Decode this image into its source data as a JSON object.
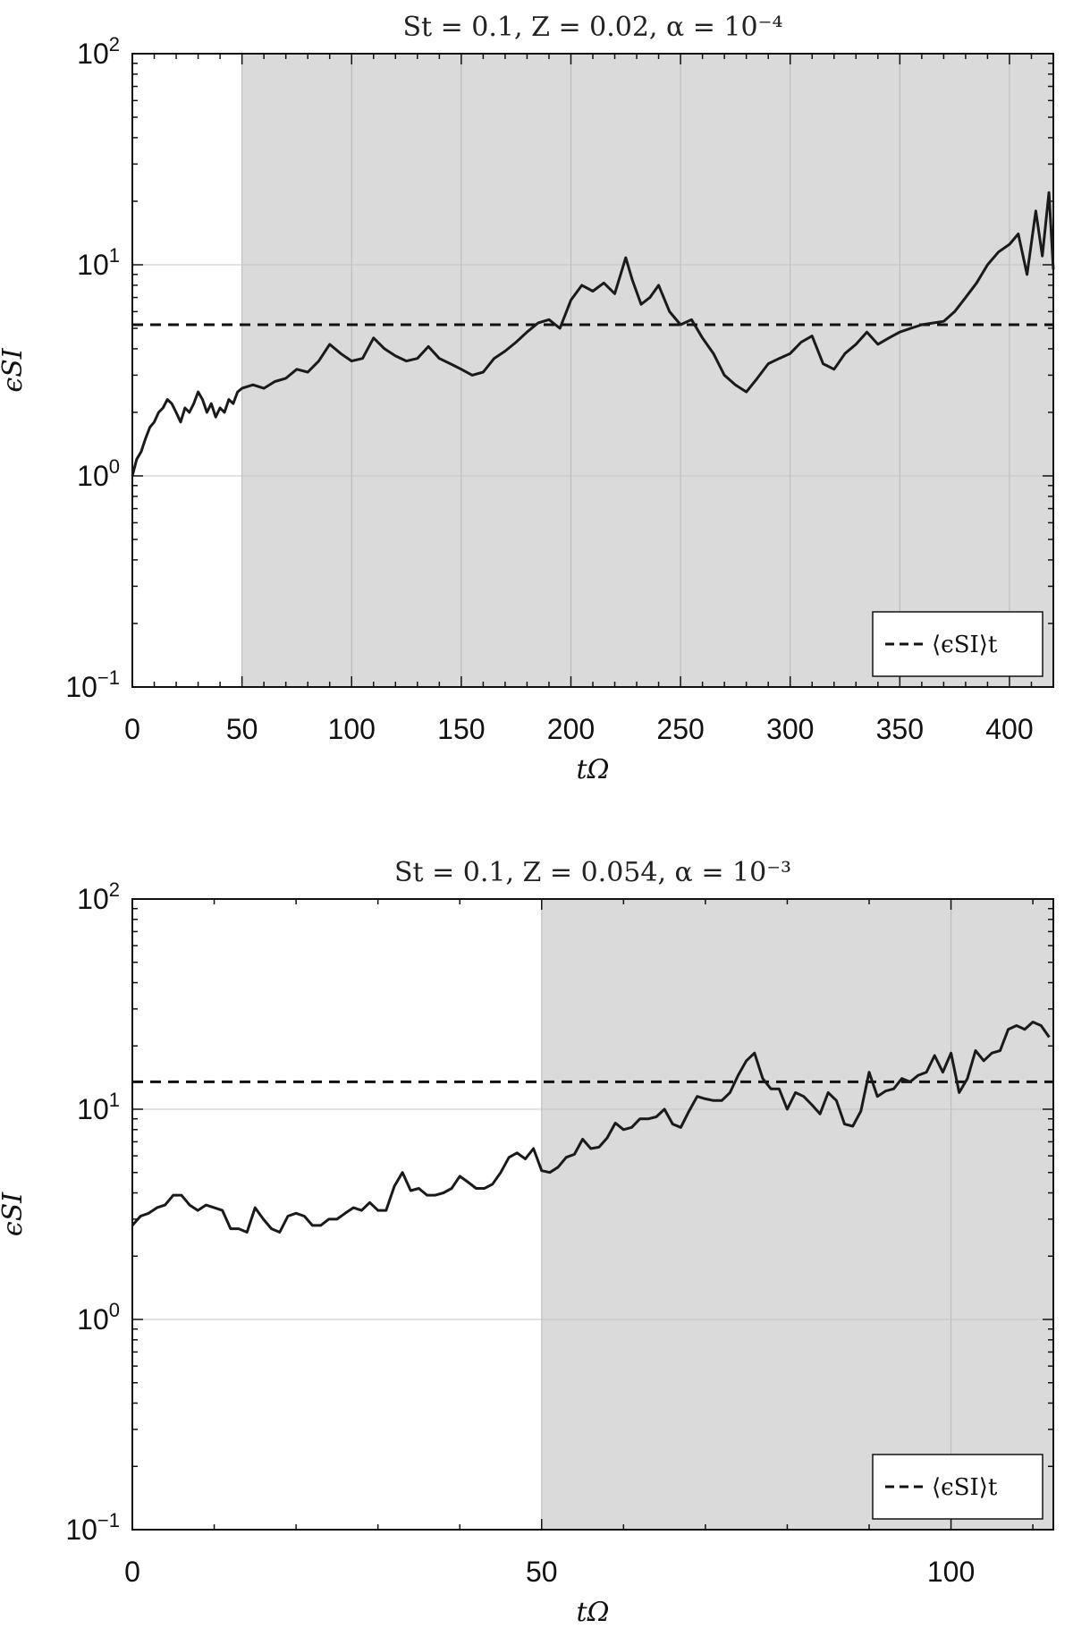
{
  "chart_data": [
    {
      "type": "line",
      "title": "St = 0.1,   Z = 0.02, α = 10⁻⁴",
      "xlabel": "tΩ",
      "ylabel": "ϵSI",
      "yscale": "log",
      "xlim": [
        0,
        420
      ],
      "ylim": [
        0.1,
        100
      ],
      "xticks": [
        0,
        50,
        100,
        150,
        200,
        250,
        300,
        350,
        400
      ],
      "yticks": [
        {
          "value": 0.1,
          "base": "10",
          "exp": "−1"
        },
        {
          "value": 1,
          "base": "10",
          "exp": "0"
        },
        {
          "value": 10,
          "base": "10",
          "exp": "1"
        },
        {
          "value": 100,
          "base": "10",
          "exp": "2"
        }
      ],
      "grid": true,
      "shaded_region": {
        "x_start": 50,
        "x_end": 420
      },
      "mean_line": {
        "label": "⟨ϵSI⟩t",
        "value": 5.2
      },
      "legend": {
        "position": "bottom-right",
        "entries": [
          "⟨ϵSI⟩t"
        ]
      },
      "series": [
        {
          "x": [
            0,
            2,
            4,
            6,
            8,
            10,
            12,
            14,
            16,
            18,
            20,
            22,
            24,
            26,
            28,
            30,
            32,
            34,
            36,
            38,
            40,
            42,
            44,
            46,
            48,
            50,
            55,
            60,
            65,
            70,
            75,
            80,
            85,
            90,
            95,
            100,
            105,
            110,
            115,
            120,
            125,
            130,
            135,
            140,
            145,
            150,
            155,
            160,
            165,
            170,
            175,
            180,
            185,
            190,
            195,
            200,
            205,
            210,
            215,
            220,
            225,
            228,
            232,
            236,
            240,
            245,
            250,
            255,
            260,
            265,
            270,
            275,
            280,
            285,
            290,
            295,
            300,
            305,
            310,
            315,
            320,
            325,
            330,
            335,
            340,
            345,
            350,
            355,
            360,
            365,
            370,
            375,
            380,
            385,
            390,
            395,
            400,
            404,
            408,
            412,
            415,
            418,
            420
          ],
          "y": [
            1.0,
            1.2,
            1.3,
            1.5,
            1.7,
            1.8,
            2.0,
            2.1,
            2.3,
            2.2,
            2.0,
            1.8,
            2.1,
            2.0,
            2.2,
            2.5,
            2.3,
            2.0,
            2.2,
            1.9,
            2.1,
            2.0,
            2.3,
            2.2,
            2.5,
            2.6,
            2.7,
            2.6,
            2.8,
            2.9,
            3.2,
            3.1,
            3.5,
            4.2,
            3.8,
            3.5,
            3.6,
            4.5,
            4.0,
            3.7,
            3.5,
            3.6,
            4.1,
            3.6,
            3.4,
            3.2,
            3.0,
            3.1,
            3.6,
            3.9,
            4.3,
            4.8,
            5.3,
            5.5,
            5.0,
            6.8,
            8.0,
            7.5,
            8.2,
            7.3,
            10.8,
            8.5,
            6.5,
            7.0,
            8.0,
            6.0,
            5.2,
            5.5,
            4.5,
            3.8,
            3.0,
            2.7,
            2.5,
            2.9,
            3.4,
            3.6,
            3.8,
            4.3,
            4.6,
            3.4,
            3.2,
            3.8,
            4.2,
            4.8,
            4.2,
            4.5,
            4.8,
            5.0,
            5.2,
            5.3,
            5.4,
            6.0,
            7.0,
            8.2,
            10.0,
            11.5,
            12.5,
            14.0,
            9.0,
            18.0,
            11.0,
            22.0,
            9.5
          ]
        }
      ]
    },
    {
      "type": "line",
      "title": "St = 0.1,   Z = 0.054, α = 10⁻³",
      "xlabel": "tΩ",
      "ylabel": "ϵSI",
      "yscale": "log",
      "xlim": [
        0,
        112.5
      ],
      "ylim": [
        0.1,
        100
      ],
      "xticks": [
        0,
        50,
        100
      ],
      "yticks": [
        {
          "value": 0.1,
          "base": "10",
          "exp": "−1"
        },
        {
          "value": 1,
          "base": "10",
          "exp": "0"
        },
        {
          "value": 10,
          "base": "10",
          "exp": "1"
        },
        {
          "value": 100,
          "base": "10",
          "exp": "2"
        }
      ],
      "grid": true,
      "shaded_region": {
        "x_start": 50,
        "x_end": 112.5
      },
      "mean_line": {
        "label": "⟨ϵSI⟩t",
        "value": 13.5
      },
      "legend": {
        "position": "bottom-right",
        "entries": [
          "⟨ϵSI⟩t"
        ]
      },
      "series": [
        {
          "x": [
            0,
            1,
            2,
            3,
            4,
            5,
            6,
            7,
            8,
            9,
            10,
            11,
            12,
            13,
            14,
            15,
            16,
            17,
            18,
            19,
            20,
            21,
            22,
            23,
            24,
            25,
            26,
            27,
            28,
            29,
            30,
            31,
            32,
            33,
            34,
            35,
            36,
            37,
            38,
            39,
            40,
            41,
            42,
            43,
            44,
            45,
            46,
            47,
            48,
            49,
            50,
            51,
            52,
            53,
            54,
            55,
            56,
            57,
            58,
            59,
            60,
            61,
            62,
            63,
            64,
            65,
            66,
            67,
            68,
            69,
            70,
            71,
            72,
            73,
            74,
            75,
            76,
            77,
            78,
            79,
            80,
            81,
            82,
            83,
            84,
            85,
            86,
            87,
            88,
            89,
            90,
            91,
            92,
            93,
            94,
            95,
            96,
            97,
            98,
            99,
            100,
            101,
            102,
            103,
            104,
            105,
            106,
            107,
            108,
            109,
            110,
            111,
            112
          ],
          "y": [
            2.8,
            3.1,
            3.2,
            3.4,
            3.5,
            3.9,
            3.9,
            3.5,
            3.3,
            3.5,
            3.4,
            3.3,
            2.7,
            2.7,
            2.6,
            3.4,
            3.0,
            2.7,
            2.6,
            3.1,
            3.2,
            3.1,
            2.8,
            2.8,
            3.0,
            3.0,
            3.2,
            3.4,
            3.3,
            3.6,
            3.3,
            3.3,
            4.3,
            5.0,
            4.1,
            4.2,
            3.9,
            3.9,
            4.0,
            4.2,
            4.8,
            4.5,
            4.2,
            4.2,
            4.4,
            5.0,
            5.9,
            6.2,
            5.8,
            6.5,
            5.1,
            5.0,
            5.3,
            5.9,
            6.1,
            7.2,
            6.5,
            6.6,
            7.3,
            8.6,
            8.0,
            8.2,
            9.0,
            9.0,
            9.2,
            10.0,
            8.5,
            8.2,
            9.8,
            11.5,
            11.2,
            11.0,
            11.0,
            12.0,
            14.5,
            17.0,
            18.5,
            14.0,
            12.5,
            12.5,
            10.0,
            12.0,
            11.5,
            10.5,
            9.5,
            12.0,
            11.0,
            8.5,
            8.3,
            9.8,
            15.0,
            11.5,
            12.2,
            12.5,
            14.0,
            13.5,
            14.5,
            15.0,
            18.0,
            15.0,
            18.5,
            12.0,
            14.0,
            19.0,
            17.0,
            18.5,
            19.0,
            24.0,
            25.0,
            24.0,
            26.0,
            25.0,
            22.0
          ]
        }
      ]
    }
  ]
}
